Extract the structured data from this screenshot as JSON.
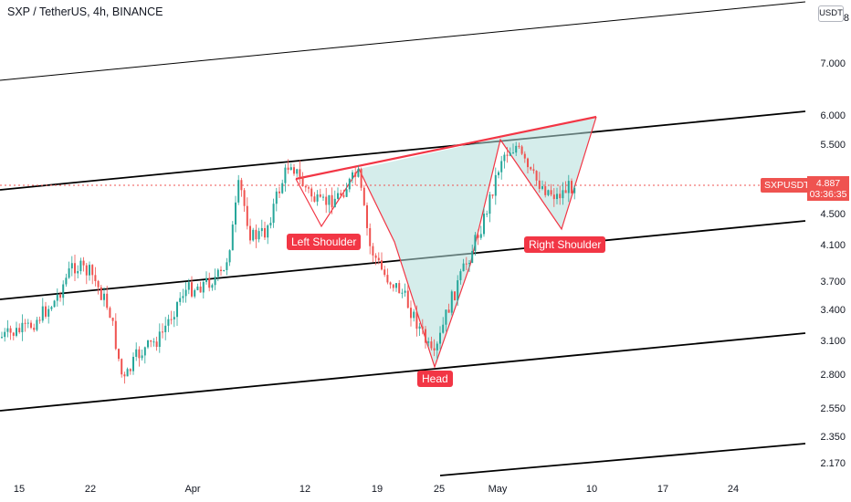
{
  "header": {
    "title": "SXP / TetherUS, 4h, BINANCE"
  },
  "y_axis": {
    "currency_button": "USDT",
    "ticks": [
      "7.000",
      "6.000",
      "5.500",
      "4.500",
      "4.100",
      "3.700",
      "3.400",
      "3.100",
      "2.800",
      "2.550",
      "2.350",
      "2.170"
    ],
    "top_partial": "8"
  },
  "x_axis": {
    "ticks": [
      "15",
      "22",
      "Apr",
      "12",
      "19",
      "25",
      "May",
      "10",
      "17",
      "24"
    ]
  },
  "current": {
    "symbol": "SXPUSDT",
    "price": "4.887",
    "countdown": "03:36:35"
  },
  "annotations": {
    "left_shoulder": "Left Shoulder",
    "head": "Head",
    "right_shoulder": "Right Shoulder"
  },
  "colors": {
    "up": "#26a69a",
    "down": "#ef5350",
    "pattern_fill": "#b2dfdb",
    "pattern_line": "#f23645",
    "channel": "#000000"
  },
  "chart_data": {
    "type": "candlestick",
    "title": "SXP / TetherUS, 4h, BINANCE",
    "pattern": "inverse head and shoulders",
    "last_price": 4.887
  }
}
